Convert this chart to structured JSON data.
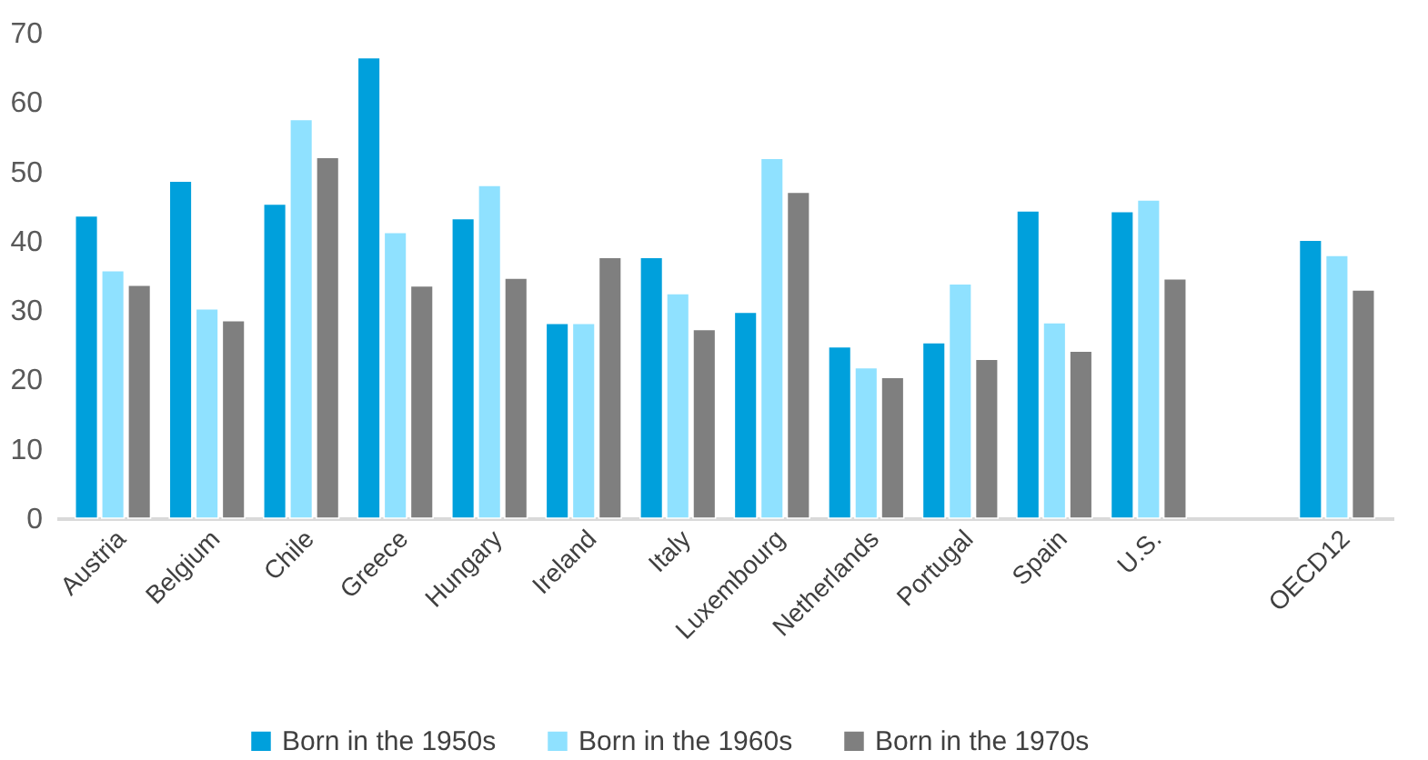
{
  "chart_data": {
    "type": "bar",
    "categories": [
      "Austria",
      "Belgium",
      "Chile",
      "Greece",
      "Hungary",
      "Ireland",
      "Italy",
      "Luxembourg",
      "Netherlands",
      "Portugal",
      "Spain",
      "U.S.",
      null,
      "OECD12"
    ],
    "series": [
      {
        "name": "Born in the 1950s",
        "color": "#00a0dc",
        "values": [
          43.6,
          48.6,
          45.3,
          66.4,
          43.2,
          28.1,
          37.6,
          29.7,
          24.7,
          25.3,
          44.3,
          44.2,
          null,
          40.1
        ]
      },
      {
        "name": "Born in the 1960s",
        "color": "#8fe1ff",
        "values": [
          35.7,
          30.2,
          57.5,
          41.2,
          48.0,
          28.1,
          32.4,
          51.9,
          21.7,
          33.8,
          28.2,
          45.9,
          null,
          37.9
        ]
      },
      {
        "name": "Born in the 1970s",
        "color": "#7f7f7f",
        "values": [
          33.6,
          28.5,
          52.0,
          33.5,
          34.6,
          37.6,
          27.2,
          47.0,
          20.3,
          22.9,
          24.1,
          34.5,
          null,
          32.9
        ]
      }
    ],
    "ylim": [
      0,
      70
    ],
    "yticks": [
      0,
      10,
      20,
      30,
      40,
      50,
      60,
      70
    ],
    "grid": false,
    "legend": "bottom"
  }
}
